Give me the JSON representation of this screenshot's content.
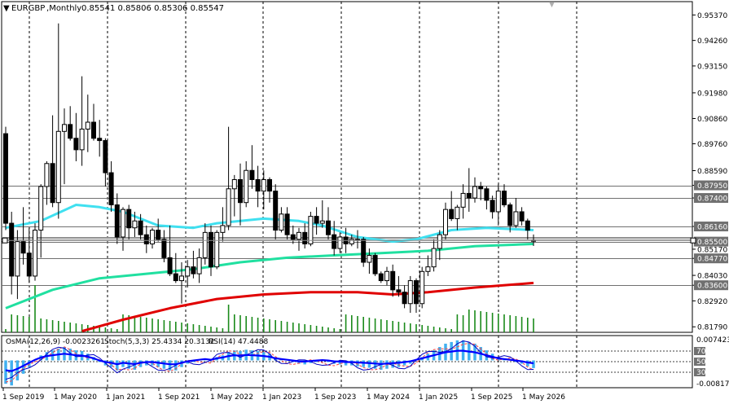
{
  "header": {
    "symbol": "EURGBP",
    "timeframe": "Monthly",
    "ohlc": "0.85541 0.85806 0.85306 0.85547"
  },
  "indicator_header": {
    "osma": "OsMA(12,26,9) -0.0023261",
    "stoch": "Stoch(5,3,3) 25.4334 20.3132",
    "rsi": "RSI(14) 47.4488"
  },
  "colors": {
    "bull_candle": "#ffffff",
    "bear_candle": "#000000",
    "ma_cyan": "#40e0f0",
    "ma_green": "#20e0a0",
    "ma_red": "#e00000",
    "volume": "#1a8a1a",
    "osma": "#40b0f0",
    "stoch_main": "#0000c0",
    "stoch_signal": "#ff4040",
    "rsi": "#0000ff",
    "grid": "#000000"
  },
  "chart_data": [
    {
      "type": "candlestick",
      "title": "EURGBP,Monthly",
      "ylim": [
        0.8155,
        0.9595
      ],
      "price_axis_ticks": [
        "0.95370",
        "0.94260",
        "0.93150",
        "0.91980",
        "0.90860",
        "0.89760",
        "0.88590",
        "0.87950",
        "0.87400",
        "0.86160",
        "0.85500",
        "0.85170",
        "0.84770",
        "0.84030",
        "0.83600",
        "0.82920",
        "0.81790"
      ],
      "level_labels": [
        "0.87950",
        "0.87400",
        "0.86160",
        "0.85500",
        "0.84770",
        "0.83600"
      ],
      "time_axis_labels": [
        "1 Sep 2019",
        "1 May 2020",
        "1 Jan 2021",
        "1 Sep 2021",
        "1 May 2022",
        "1 Jan 2023",
        "1 Sep 2023",
        "1 May 2024",
        "1 Jan 2025",
        "1 Sep 2025",
        "1 May 2026"
      ],
      "candles": [
        [
          0.902,
          0.905,
          0.86,
          0.863
        ],
        [
          0.863,
          0.868,
          0.832,
          0.84
        ],
        [
          0.84,
          0.86,
          0.83,
          0.855
        ],
        [
          0.855,
          0.87,
          0.845,
          0.85
        ],
        [
          0.85,
          0.861,
          0.837,
          0.84
        ],
        [
          0.84,
          0.863,
          0.838,
          0.86
        ],
        [
          0.86,
          0.88,
          0.848,
          0.879
        ],
        [
          0.879,
          0.89,
          0.871,
          0.889
        ],
        [
          0.889,
          0.91,
          0.87,
          0.872
        ],
        [
          0.872,
          0.95,
          0.865,
          0.903
        ],
        [
          0.903,
          0.913,
          0.88,
          0.906
        ],
        [
          0.906,
          0.914,
          0.899,
          0.9
        ],
        [
          0.9,
          0.911,
          0.89,
          0.895
        ],
        [
          0.895,
          0.927,
          0.888,
          0.904
        ],
        [
          0.904,
          0.919,
          0.894,
          0.907
        ],
        [
          0.907,
          0.915,
          0.899,
          0.9
        ],
        [
          0.9,
          0.908,
          0.892,
          0.899
        ],
        [
          0.899,
          0.9,
          0.879,
          0.885
        ],
        [
          0.885,
          0.89,
          0.868,
          0.871
        ],
        [
          0.871,
          0.876,
          0.854,
          0.857
        ],
        [
          0.857,
          0.87,
          0.851,
          0.869
        ],
        [
          0.869,
          0.871,
          0.856,
          0.861
        ],
        [
          0.861,
          0.868,
          0.857,
          0.864
        ],
        [
          0.864,
          0.867,
          0.856,
          0.858
        ],
        [
          0.858,
          0.862,
          0.85,
          0.854
        ],
        [
          0.854,
          0.861,
          0.852,
          0.86
        ],
        [
          0.86,
          0.865,
          0.855,
          0.856
        ],
        [
          0.856,
          0.86,
          0.846,
          0.848
        ],
        [
          0.848,
          0.862,
          0.84,
          0.841
        ],
        [
          0.841,
          0.85,
          0.837,
          0.838
        ],
        [
          0.838,
          0.846,
          0.828,
          0.84
        ],
        [
          0.84,
          0.847,
          0.835,
          0.844
        ],
        [
          0.844,
          0.851,
          0.839,
          0.841
        ],
        [
          0.841,
          0.852,
          0.837,
          0.848
        ],
        [
          0.848,
          0.863,
          0.845,
          0.859
        ],
        [
          0.859,
          0.862,
          0.84,
          0.844
        ],
        [
          0.844,
          0.86,
          0.843,
          0.859
        ],
        [
          0.859,
          0.87,
          0.855,
          0.862
        ],
        [
          0.862,
          0.905,
          0.86,
          0.878
        ],
        [
          0.878,
          0.884,
          0.866,
          0.882
        ],
        [
          0.882,
          0.889,
          0.862,
          0.872
        ],
        [
          0.872,
          0.89,
          0.87,
          0.886
        ],
        [
          0.886,
          0.897,
          0.878,
          0.882
        ],
        [
          0.882,
          0.888,
          0.87,
          0.877
        ],
        [
          0.877,
          0.886,
          0.869,
          0.882
        ],
        [
          0.882,
          0.883,
          0.872,
          0.877
        ],
        [
          0.877,
          0.88,
          0.856,
          0.86
        ],
        [
          0.86,
          0.87,
          0.859,
          0.867
        ],
        [
          0.867,
          0.87,
          0.856,
          0.858
        ],
        [
          0.858,
          0.862,
          0.854,
          0.856
        ],
        [
          0.856,
          0.861,
          0.851,
          0.859
        ],
        [
          0.859,
          0.863,
          0.852,
          0.854
        ],
        [
          0.854,
          0.868,
          0.853,
          0.866
        ],
        [
          0.866,
          0.87,
          0.858,
          0.863
        ],
        [
          0.863,
          0.873,
          0.861,
          0.864
        ],
        [
          0.864,
          0.87,
          0.856,
          0.858
        ],
        [
          0.858,
          0.864,
          0.849,
          0.852
        ],
        [
          0.852,
          0.859,
          0.85,
          0.857
        ],
        [
          0.857,
          0.861,
          0.85,
          0.854
        ],
        [
          0.854,
          0.858,
          0.853,
          0.856
        ],
        [
          0.856,
          0.86,
          0.852,
          0.856
        ],
        [
          0.856,
          0.857,
          0.844,
          0.846
        ],
        [
          0.846,
          0.852,
          0.841,
          0.849
        ],
        [
          0.849,
          0.85,
          0.84,
          0.841
        ],
        [
          0.841,
          0.842,
          0.837,
          0.838
        ],
        [
          0.838,
          0.844,
          0.836,
          0.842
        ],
        [
          0.842,
          0.845,
          0.831,
          0.834
        ],
        [
          0.834,
          0.84,
          0.831,
          0.833
        ],
        [
          0.833,
          0.836,
          0.826,
          0.828
        ],
        [
          0.828,
          0.84,
          0.824,
          0.838
        ],
        [
          0.838,
          0.839,
          0.824,
          0.828
        ],
        [
          0.828,
          0.844,
          0.826,
          0.842
        ],
        [
          0.842,
          0.849,
          0.84,
          0.844
        ],
        [
          0.844,
          0.856,
          0.842,
          0.852
        ],
        [
          0.852,
          0.86,
          0.847,
          0.858
        ],
        [
          0.858,
          0.872,
          0.856,
          0.869
        ],
        [
          0.869,
          0.877,
          0.864,
          0.865
        ],
        [
          0.865,
          0.871,
          0.86,
          0.87
        ],
        [
          0.87,
          0.88,
          0.865,
          0.876
        ],
        [
          0.876,
          0.887,
          0.868,
          0.874
        ],
        [
          0.874,
          0.883,
          0.872,
          0.879
        ],
        [
          0.879,
          0.881,
          0.873,
          0.878
        ],
        [
          0.878,
          0.879,
          0.869,
          0.873
        ],
        [
          0.873,
          0.875,
          0.865,
          0.868
        ],
        [
          0.868,
          0.88,
          0.862,
          0.877
        ],
        [
          0.877,
          0.88,
          0.87,
          0.871
        ],
        [
          0.871,
          0.872,
          0.859,
          0.862
        ],
        [
          0.862,
          0.874,
          0.861,
          0.868
        ],
        [
          0.868,
          0.87,
          0.862,
          0.864
        ],
        [
          0.864,
          0.865,
          0.856,
          0.86
        ],
        [
          0.8554,
          0.8581,
          0.8531,
          0.8555
        ]
      ],
      "moving_averages": [
        {
          "color": "cyan",
          "values": [
            [
              0,
              0.861
            ],
            [
              6,
              0.864
            ],
            [
              12,
              0.871
            ],
            [
              16,
              0.87
            ],
            [
              20,
              0.868
            ],
            [
              26,
              0.862
            ],
            [
              32,
              0.861
            ],
            [
              36,
              0.863
            ],
            [
              44,
              0.865
            ],
            [
              50,
              0.864
            ],
            [
              54,
              0.862
            ],
            [
              60,
              0.857
            ],
            [
              66,
              0.855
            ],
            [
              70,
              0.856
            ],
            [
              76,
              0.86
            ],
            [
              82,
              0.861
            ],
            [
              90,
              0.86
            ]
          ]
        },
        {
          "color": "green",
          "values": [
            [
              0,
              0.826
            ],
            [
              8,
              0.834
            ],
            [
              16,
              0.839
            ],
            [
              24,
              0.841
            ],
            [
              32,
              0.843
            ],
            [
              40,
              0.846
            ],
            [
              48,
              0.848
            ],
            [
              56,
              0.849
            ],
            [
              64,
              0.85
            ],
            [
              72,
              0.851
            ],
            [
              80,
              0.853
            ],
            [
              90,
              0.854
            ]
          ]
        },
        {
          "color": "red",
          "values": [
            [
              13,
              0.816
            ],
            [
              20,
              0.821
            ],
            [
              28,
              0.826
            ],
            [
              36,
              0.83
            ],
            [
              44,
              0.832
            ],
            [
              52,
              0.833
            ],
            [
              60,
              0.833
            ],
            [
              66,
              0.832
            ],
            [
              72,
              0.833
            ],
            [
              80,
              0.835
            ],
            [
              90,
              0.837
            ]
          ]
        }
      ]
    },
    {
      "type": "indicator_panel",
      "title": "OsMA(12,26,9) -0.0023261 Stoch(5,3,3) 25.4334 20.3132 RSI(14) 47.4488",
      "ylim_osma": [
        -0.0081731,
        0.0074234
      ],
      "right_axis_labels": [
        "0.0074234",
        "70",
        "50",
        "30",
        "-0.0081731"
      ],
      "osma_values": [
        -0.007,
        -0.0075,
        -0.006,
        -0.004,
        -0.002,
        0.0,
        0.0015,
        0.0025,
        0.003,
        0.0035,
        0.004,
        0.0035,
        0.003,
        0.0028,
        0.002,
        0.001,
        -0.0005,
        -0.0015,
        -0.002,
        -0.003,
        -0.002,
        -0.0025,
        -0.0028,
        -0.002,
        -0.0015,
        -0.0015,
        -0.002,
        -0.0025,
        -0.003,
        -0.003,
        -0.002,
        -0.001,
        -0.0005,
        0.0,
        0.0005,
        0.0,
        0.001,
        0.0015,
        0.0025,
        0.003,
        0.0028,
        0.0032,
        0.003,
        0.0028,
        0.0025,
        0.002,
        0.001,
        0.0005,
        0.0,
        -0.0005,
        -0.001,
        -0.0012,
        -0.0008,
        -0.0005,
        -0.0002,
        -0.0005,
        -0.001,
        -0.0012,
        -0.0015,
        -0.0015,
        -0.0018,
        -0.002,
        -0.0022,
        -0.0025,
        -0.0028,
        -0.0025,
        -0.0022,
        -0.002,
        -0.0015,
        -0.001,
        0.0,
        0.001,
        0.002,
        0.003,
        0.004,
        0.005,
        0.0055,
        0.006,
        0.006,
        0.0055,
        0.005,
        0.004,
        0.003,
        0.002,
        0.001,
        0.0005,
        0.0,
        -0.0005,
        -0.001,
        -0.0018,
        -0.0023
      ]
    }
  ],
  "ui": {
    "collapse_arrow": "▼",
    "scroll_marker": "▼"
  }
}
